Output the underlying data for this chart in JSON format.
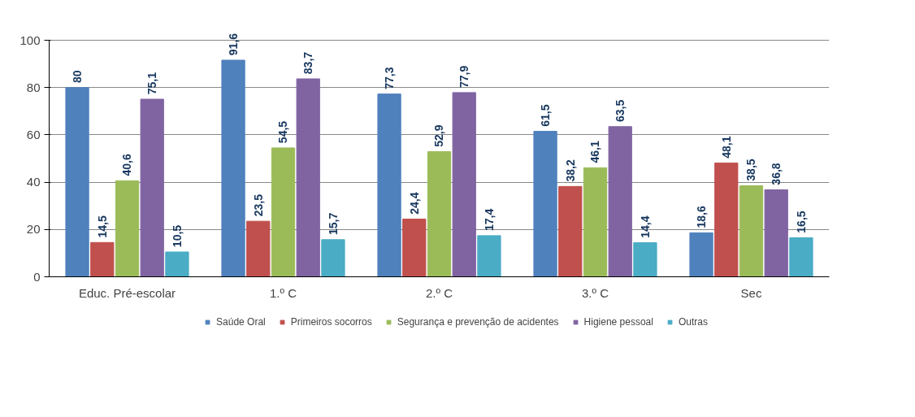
{
  "chart_data": {
    "type": "bar",
    "categories": [
      "Educ. Pré-escolar",
      "1.º C",
      "2.º C",
      "3.º C",
      "Sec"
    ],
    "series": [
      {
        "name": "Saúde Oral",
        "color": "#4f81bd",
        "values": [
          80,
          91.6,
          77.3,
          61.5,
          18.6
        ],
        "value_labels": [
          "80",
          "91,6",
          "77,3",
          "61,5",
          "18,6"
        ]
      },
      {
        "name": "Primeiros socorros",
        "color": "#c0504d",
        "values": [
          14.5,
          23.5,
          24.4,
          38.2,
          48.1
        ],
        "value_labels": [
          "14,5",
          "23,5",
          "24,4",
          "38,2",
          "48,1"
        ]
      },
      {
        "name": "Segurança e prevenção de acidentes",
        "color": "#9bbb59",
        "values": [
          40.6,
          54.5,
          52.9,
          46.1,
          38.5
        ],
        "value_labels": [
          "40,6",
          "54,5",
          "52,9",
          "46,1",
          "38,5"
        ]
      },
      {
        "name": "Higiene pessoal",
        "color": "#8064a2",
        "values": [
          75.1,
          83.7,
          77.9,
          63.5,
          36.8
        ],
        "value_labels": [
          "75,1",
          "83,7",
          "77,9",
          "63,5",
          "36,8"
        ]
      },
      {
        "name": "Outras",
        "color": "#4bacc6",
        "values": [
          10.5,
          15.7,
          17.4,
          14.4,
          16.5
        ],
        "value_labels": [
          "10,5",
          "15,7",
          "17,4",
          "14,4",
          "16,5"
        ]
      }
    ],
    "ylim": [
      0,
      100
    ],
    "yticks": [
      0,
      20,
      40,
      60,
      80,
      100
    ],
    "grid": "y",
    "legend": "bottom"
  }
}
